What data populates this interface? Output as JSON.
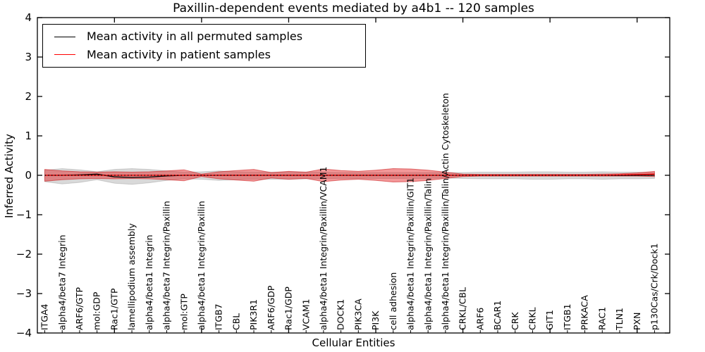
{
  "figure": {
    "background": "#ffffff"
  },
  "legend": {
    "entries": [
      {
        "label": "Mean activity in all permuted samples",
        "color": "#000000"
      },
      {
        "label": "Mean activity in patient samples",
        "color": "#ff0000"
      }
    ]
  },
  "chart_data": {
    "type": "line",
    "title": "Paxillin-dependent events mediated by a4b1 -- 120 samples",
    "xlabel": "Cellular Entities",
    "ylabel": "Inferred Activity",
    "ylim": [
      -4,
      4
    ],
    "y_ticks": [
      4,
      3,
      2,
      1,
      0,
      -1,
      -2,
      -3,
      -4
    ],
    "y_tick_labels": [
      "4",
      "3",
      "2",
      "1",
      "0",
      "−1",
      "−2",
      "−3",
      "−4"
    ],
    "grid": false,
    "legend_position": "upper left",
    "categories": [
      "ITGA4",
      "alpha4/beta7 Integrin",
      "ARF6/GTP",
      "mol:GDP",
      "Rac1/GTP",
      "lamellipodium assembly",
      "alpha4/beta1 Integrin",
      "alpha4/beta7 Integrin/Paxillin",
      "mol:GTP",
      "alpha4/beta1 Integrin/Paxillin",
      "ITGB7",
      "CBL",
      "PIK3R1",
      "ARF6/GDP",
      "Rac1/GDP",
      "VCAM1",
      "alpha4/beta1 Integrin/Paxillin/VCAM1",
      "DOCK1",
      "PIK3CA",
      "PI3K",
      "cell adhesion",
      "alpha4/beta1 Integrin/Paxillin/GIT1",
      "alpha4/beta1 Integrin/Paxillin/Talin",
      "alpha4/beta1 Integrin/Paxillin/Talin/Actin Cytoskeleton",
      "CRKL/CBL",
      "ARF6",
      "BCAR1",
      "CRK",
      "CRKL",
      "GIT1",
      "ITGB1",
      "PRKACA",
      "RAC1",
      "TLN1",
      "PXN",
      "p130Cas/Crk/Dock1"
    ],
    "series": [
      {
        "name": "Mean activity in all permuted samples",
        "color": "#000000",
        "style": "solid",
        "values": [
          0,
          0,
          0.01,
          0.03,
          -0.04,
          -0.055,
          -0.045,
          -0.015,
          0,
          0,
          0,
          0,
          0,
          0,
          0,
          0,
          0,
          0,
          0,
          0,
          0,
          0,
          0,
          0,
          0,
          0,
          0,
          0,
          0,
          0,
          0,
          0,
          0,
          0,
          0,
          0
        ]
      },
      {
        "name": "Mean activity in patient samples",
        "color": "#ff0000",
        "style": "solid",
        "values": [
          0,
          0,
          0,
          0,
          0,
          0,
          0,
          0,
          0,
          0,
          0,
          0,
          0,
          0,
          0,
          0,
          0,
          0,
          0,
          0,
          0,
          0,
          0,
          0,
          0,
          0,
          0,
          0,
          0,
          0,
          0,
          0,
          0,
          0.01,
          0.02,
          0.03
        ]
      }
    ],
    "zero_line": {
      "style": "dotted",
      "color": "#000000",
      "y": 0
    },
    "bands": [
      {
        "name": "permuted-band",
        "fill": "rgba(128,128,128,0.30)",
        "edge": "rgba(100,100,100,0.25)",
        "upper": [
          0.13,
          0.17,
          0.14,
          0.09,
          0.15,
          0.17,
          0.15,
          0.11,
          0.08,
          0.09,
          0.11,
          0.09,
          0.08,
          0.08,
          0.08,
          0.08,
          0.08,
          0.07,
          0.07,
          0.07,
          0.07,
          0.07,
          0.07,
          0.07,
          0.07,
          0.08,
          0.08,
          0.08,
          0.09,
          0.09,
          0.08,
          0.08,
          0.09,
          0.08,
          0.08,
          0.07
        ],
        "lower": [
          -0.16,
          -0.22,
          -0.18,
          -0.11,
          -0.2,
          -0.23,
          -0.19,
          -0.13,
          -0.09,
          -0.1,
          -0.13,
          -0.11,
          -0.1,
          -0.1,
          -0.1,
          -0.09,
          -0.09,
          -0.08,
          -0.08,
          -0.08,
          -0.08,
          -0.08,
          -0.08,
          -0.07,
          -0.08,
          -0.09,
          -0.09,
          -0.09,
          -0.1,
          -0.1,
          -0.09,
          -0.09,
          -0.1,
          -0.09,
          -0.09,
          -0.08
        ]
      },
      {
        "name": "patient-band",
        "fill": "rgba(228,26,28,0.45)",
        "edge": "rgba(200,20,22,0.55)",
        "upper": [
          0.15,
          0.11,
          0.09,
          0.08,
          0.09,
          0.08,
          0.09,
          0.11,
          0.14,
          0.03,
          0.09,
          0.12,
          0.15,
          0.07,
          0.1,
          0.08,
          0.16,
          0.12,
          0.1,
          0.13,
          0.17,
          0.16,
          0.13,
          0.08,
          0.03,
          0.025,
          0.025,
          0.025,
          0.025,
          0.025,
          0.025,
          0.025,
          0.03,
          0.04,
          0.06,
          0.1
        ],
        "lower": [
          -0.15,
          -0.11,
          -0.09,
          -0.08,
          -0.09,
          -0.08,
          -0.09,
          -0.11,
          -0.14,
          -0.03,
          -0.09,
          -0.12,
          -0.15,
          -0.07,
          -0.1,
          -0.08,
          -0.16,
          -0.12,
          -0.1,
          -0.13,
          -0.17,
          -0.16,
          -0.13,
          -0.08,
          -0.03,
          -0.02,
          -0.02,
          -0.02,
          -0.02,
          -0.02,
          -0.02,
          -0.02,
          -0.02,
          -0.02,
          -0.02,
          -0.03
        ]
      }
    ]
  }
}
